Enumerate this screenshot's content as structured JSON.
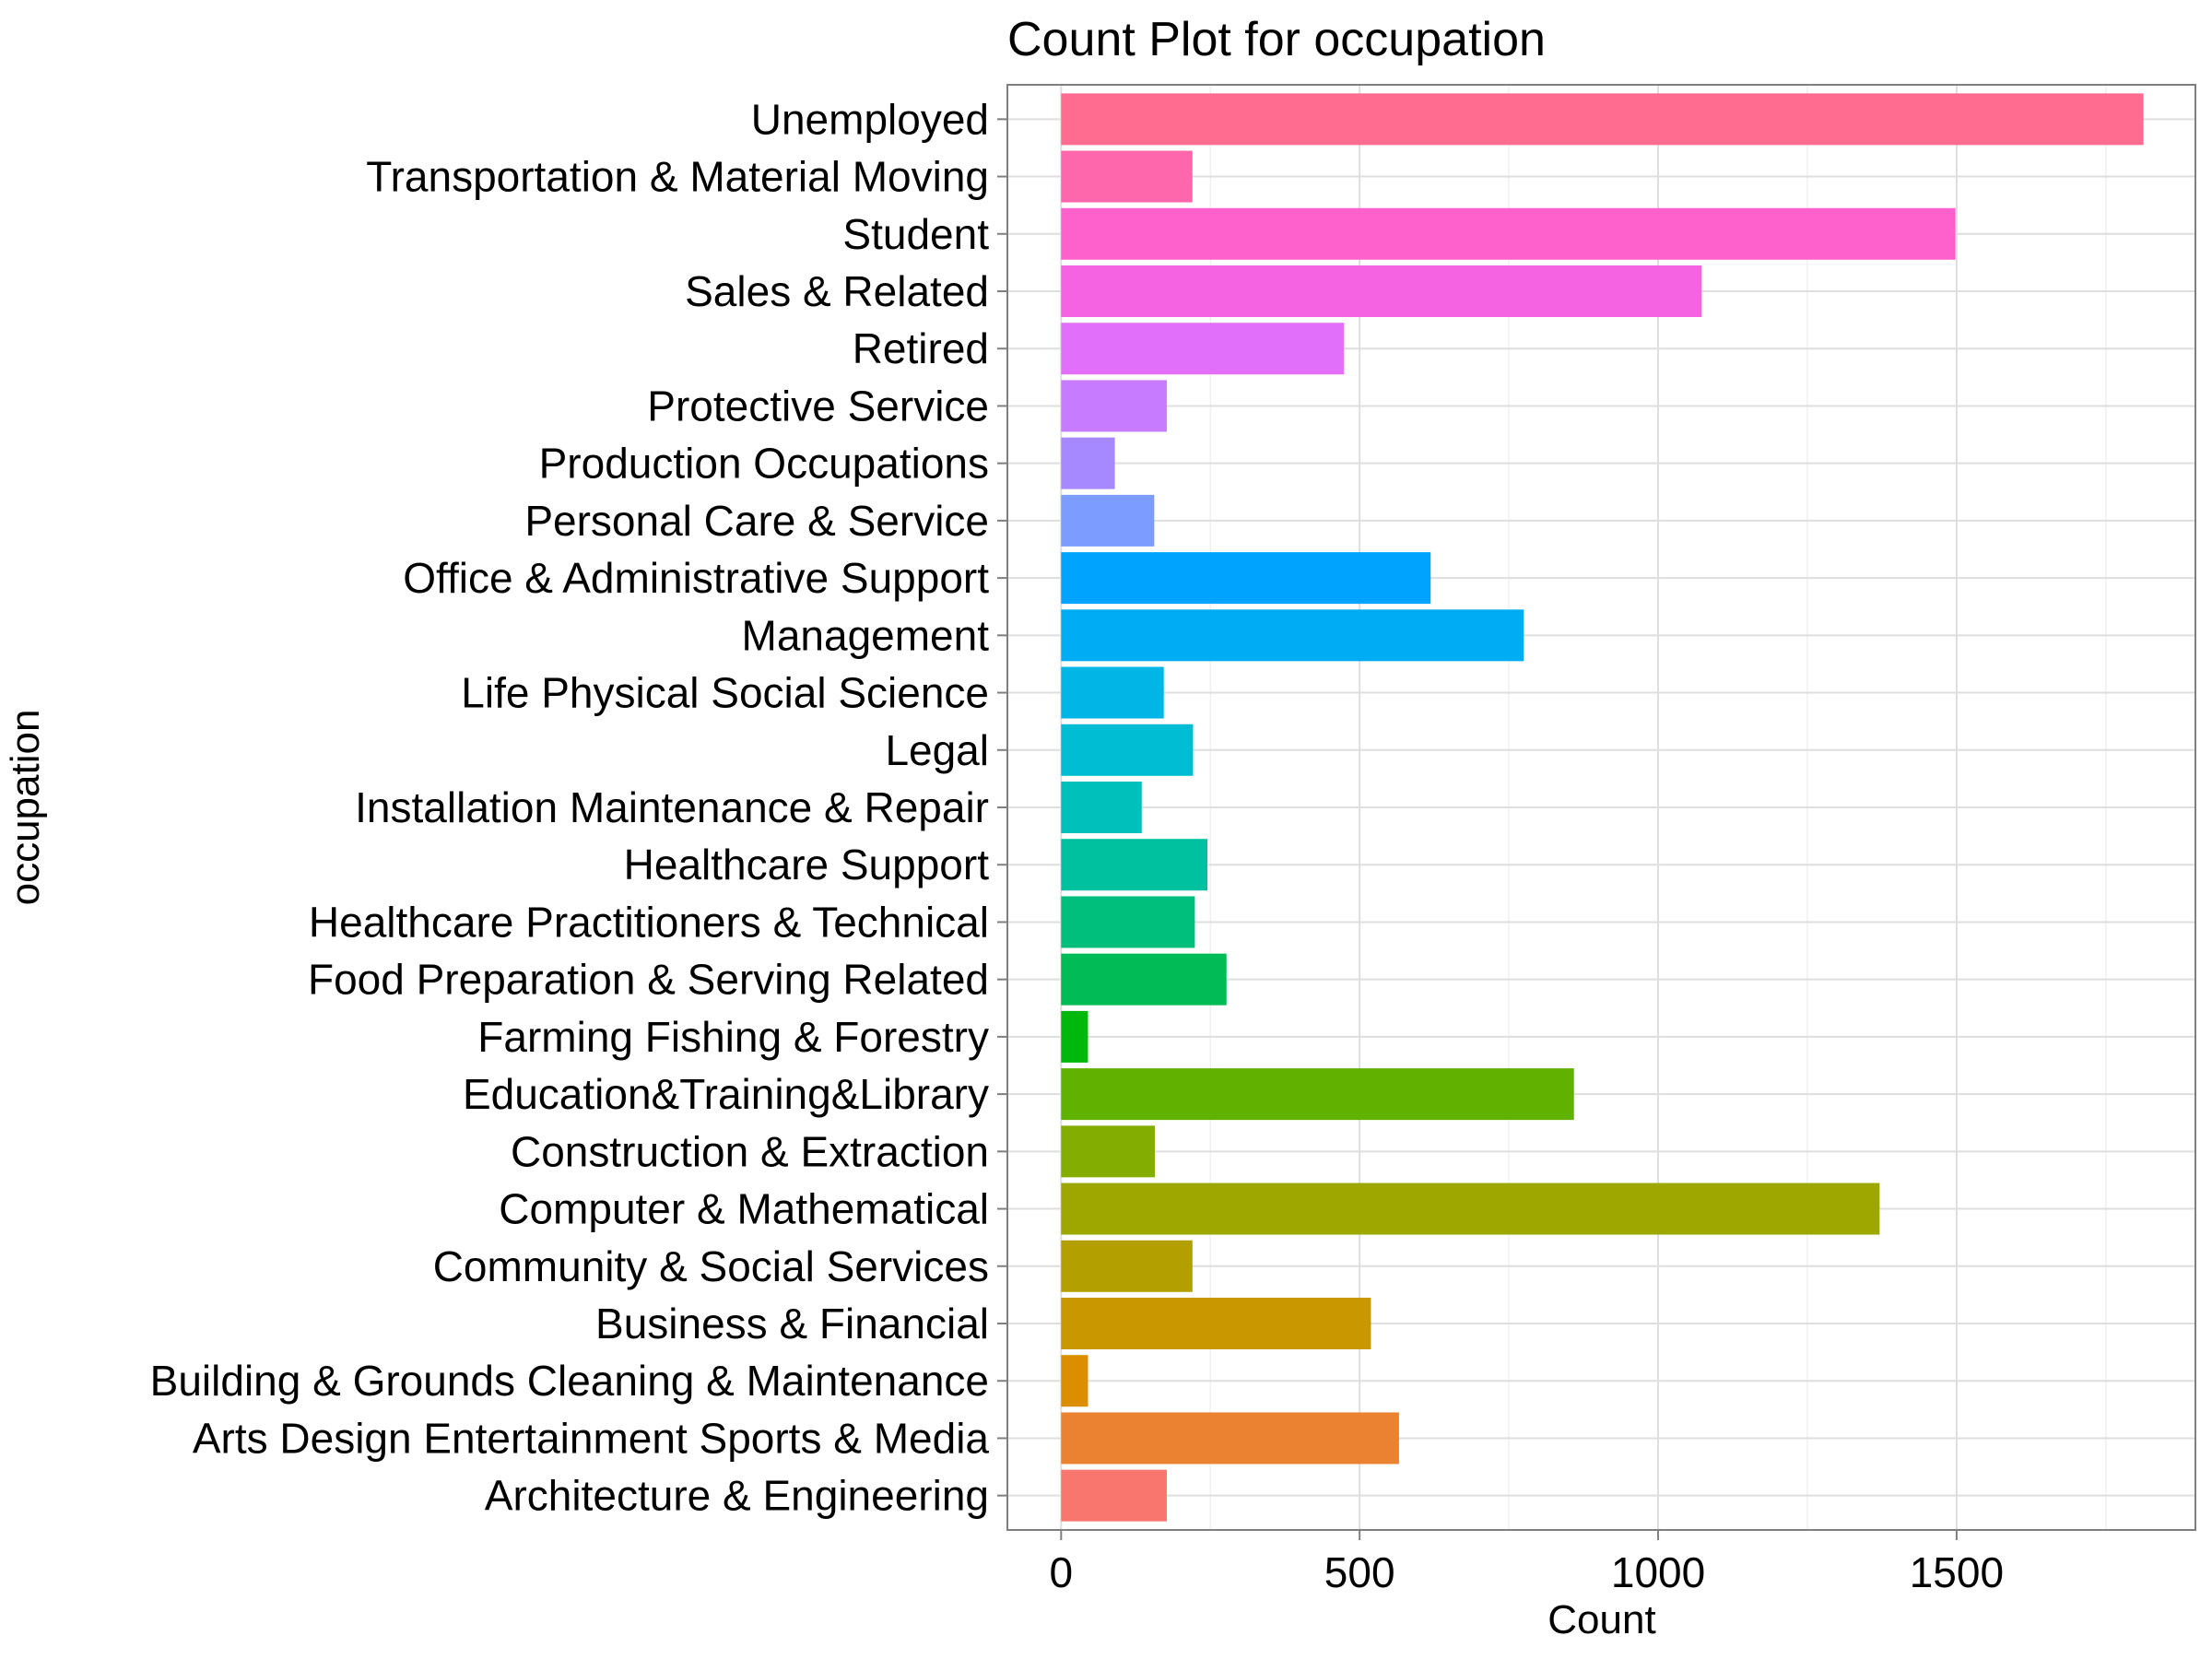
{
  "chart_data": {
    "type": "bar",
    "orientation": "horizontal",
    "title": "Count Plot for occupation",
    "xlabel": "Count",
    "ylabel": "occupation",
    "xlim": [
      -90,
      1900
    ],
    "xticks": [
      0,
      500,
      1000,
      1500
    ],
    "xtick_labels": [
      "0",
      "500",
      "1000",
      "1500"
    ],
    "grid": true,
    "legend": "none",
    "categories": [
      "Architecture & Engineering",
      "Arts Design Entertainment Sports & Media",
      "Building & Grounds Cleaning & Maintenance",
      "Business & Financial",
      "Community & Social Services",
      "Computer & Mathematical",
      "Construction & Extraction",
      "Education&Training&Library",
      "Farming Fishing & Forestry",
      "Food Preparation & Serving Related",
      "Healthcare Practitioners & Technical",
      "Healthcare Support",
      "Installation Maintenance & Repair",
      "Legal",
      "Life Physical Social Science",
      "Management",
      "Office & Administrative Support",
      "Personal Care & Service",
      "Production Occupations",
      "Protective Service",
      "Retired",
      "Sales & Related",
      "Student",
      "Transportation & Material Moving",
      "Unemployed"
    ],
    "values": [
      177,
      566,
      45,
      519,
      220,
      1371,
      157,
      859,
      45,
      277,
      224,
      245,
      135,
      221,
      172,
      775,
      619,
      156,
      90,
      177,
      474,
      1073,
      1498,
      220,
      1813
    ],
    "colors": [
      "#F8766D",
      "#EA8331",
      "#DB8E00",
      "#C99800",
      "#B3A000",
      "#9DA700",
      "#83AD00",
      "#61B200",
      "#00B80C",
      "#00BC56",
      "#00BF7D",
      "#00C19F",
      "#00C0BC",
      "#00BDD3",
      "#00B6E6",
      "#00ADF5",
      "#00A4FF",
      "#7C9CFF",
      "#A789FF",
      "#C77CFF",
      "#E16FF7",
      "#F563E3",
      "#FF61CC",
      "#FF67AD",
      "#FF6C90"
    ]
  }
}
